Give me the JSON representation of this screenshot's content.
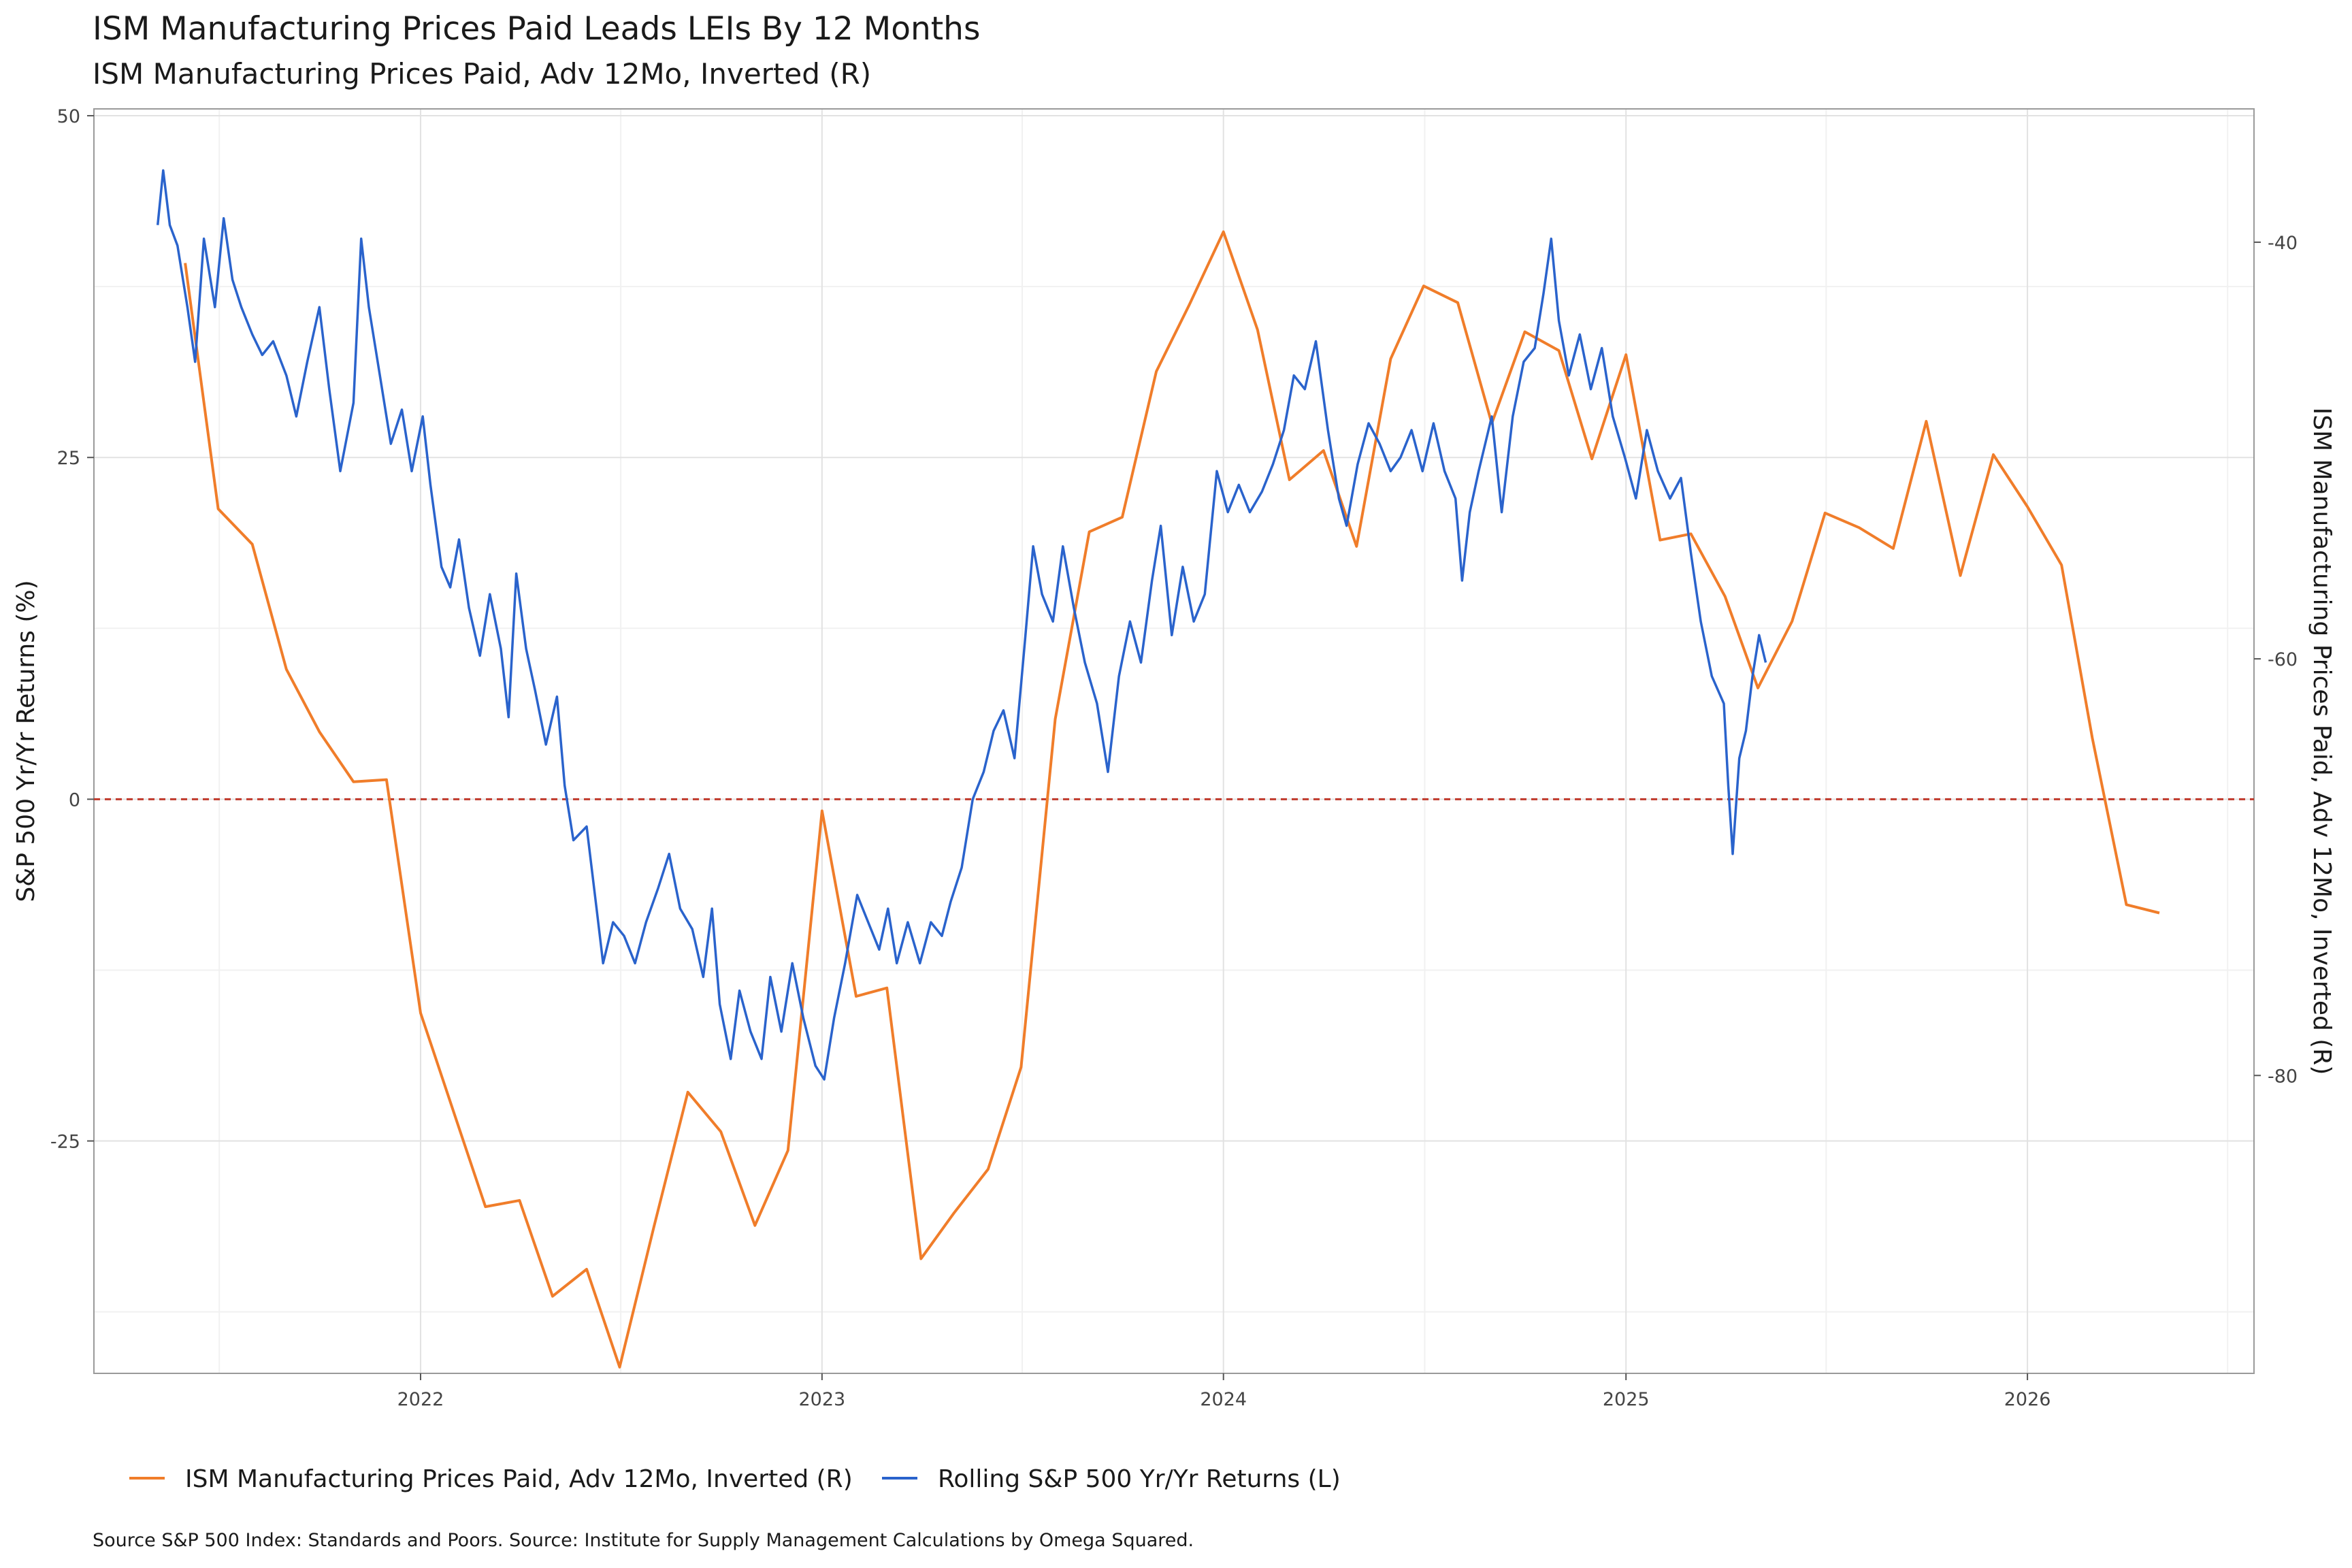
{
  "chart_data": {
    "type": "line",
    "title": "ISM Manufacturing Prices Paid  Leads LEIs By  12  Months",
    "subtitle": "ISM Manufacturing Prices Paid, Adv 12Mo, Inverted (R)",
    "ylabel_left": "S&P 500 Yr/Yr Returns (%)",
    "ylabel_right": "ISM Manufacturing Prices Paid, Adv 12Mo, Inverted (R)",
    "ylim_left": [
      -42,
      50.5
    ],
    "ylim_right": [
      -94.3,
      -33.6
    ],
    "xlim": [
      "2021-03-10",
      "2026-07-26"
    ],
    "x_ticks": [
      "2022",
      "2023",
      "2024",
      "2025",
      "2026"
    ],
    "y_ticks_left": [
      "50",
      "25",
      "0",
      "-25"
    ],
    "y_ticks_right": [
      "-40",
      "-60",
      "-80"
    ],
    "reference_line_left": 0,
    "grid": true,
    "legend_position": "bottom-left",
    "colors": {
      "ism": "#f07d2a",
      "sp500": "#2a63cc",
      "zero_line": "#c0392b"
    },
    "series": [
      {
        "name": "ISM Manufacturing Prices Paid, Adv 12Mo, Inverted (R)",
        "axis": "right",
        "color": "#f07d2a",
        "points": [
          [
            "2021-06-01",
            -41.0
          ],
          [
            "2021-07-01",
            -52.8
          ],
          [
            "2021-08-01",
            -54.5
          ],
          [
            "2021-09-01",
            -60.5
          ],
          [
            "2021-10-01",
            -63.5
          ],
          [
            "2021-11-01",
            -65.9
          ],
          [
            "2021-12-01",
            -65.8
          ],
          [
            "2022-01-01",
            -77.0
          ],
          [
            "2022-02-01",
            -81.9
          ],
          [
            "2022-03-01",
            -86.3
          ],
          [
            "2022-04-01",
            -86.0
          ],
          [
            "2022-05-01",
            -90.6
          ],
          [
            "2022-06-01",
            -89.3
          ],
          [
            "2022-07-01",
            -94.0
          ],
          [
            "2022-08-01",
            -87.3
          ],
          [
            "2022-09-01",
            -80.8
          ],
          [
            "2022-10-01",
            -82.7
          ],
          [
            "2022-11-01",
            -87.2
          ],
          [
            "2022-12-01",
            -83.6
          ],
          [
            "2023-01-01",
            -67.3
          ],
          [
            "2023-02-01",
            -76.2
          ],
          [
            "2023-03-01",
            -75.8
          ],
          [
            "2023-04-01",
            -88.8
          ],
          [
            "2023-05-01",
            -86.6
          ],
          [
            "2023-06-01",
            -84.5
          ],
          [
            "2023-07-01",
            -79.6
          ],
          [
            "2023-08-01",
            -62.9
          ],
          [
            "2023-09-01",
            -53.9
          ],
          [
            "2023-10-01",
            -53.2
          ],
          [
            "2023-11-01",
            -46.2
          ],
          [
            "2023-12-01",
            -43.0
          ],
          [
            "2024-01-01",
            -39.5
          ],
          [
            "2024-02-01",
            -44.2
          ],
          [
            "2024-03-01",
            -51.4
          ],
          [
            "2024-04-01",
            -50.0
          ],
          [
            "2024-05-01",
            -54.6
          ],
          [
            "2024-06-01",
            -45.6
          ],
          [
            "2024-07-01",
            -42.1
          ],
          [
            "2024-08-01",
            -42.9
          ],
          [
            "2024-09-01",
            -48.7
          ],
          [
            "2024-10-01",
            -44.3
          ],
          [
            "2024-11-01",
            -45.2
          ],
          [
            "2024-12-01",
            -50.4
          ],
          [
            "2025-01-01",
            -45.4
          ],
          [
            "2025-02-01",
            -54.3
          ],
          [
            "2025-03-01",
            -54.0
          ],
          [
            "2025-04-01",
            -57.0
          ],
          [
            "2025-05-01",
            -61.4
          ],
          [
            "2025-06-01",
            -58.2
          ],
          [
            "2025-07-01",
            -53.0
          ],
          [
            "2025-08-01",
            -53.7
          ],
          [
            "2025-09-01",
            -54.7
          ],
          [
            "2025-10-01",
            -48.6
          ],
          [
            "2025-11-01",
            -56.0
          ],
          [
            "2025-12-01",
            -50.2
          ],
          [
            "2026-01-01",
            -52.7
          ],
          [
            "2026-02-01",
            -55.5
          ],
          [
            "2026-03-01",
            -63.8
          ],
          [
            "2026-04-01",
            -71.8
          ],
          [
            "2026-05-01",
            -72.2
          ]
        ]
      },
      {
        "name": "Rolling S&P 500 Yr/Yr Returns (L)",
        "axis": "left",
        "color": "#2a63cc",
        "points": [
          [
            "2021-05-07",
            42.0
          ],
          [
            "2021-05-12",
            46.0
          ],
          [
            "2021-05-18",
            42.0
          ],
          [
            "2021-05-25",
            40.5
          ],
          [
            "2021-06-03",
            36.0
          ],
          [
            "2021-06-10",
            32.0
          ],
          [
            "2021-06-18",
            41.0
          ],
          [
            "2021-06-28",
            36.0
          ],
          [
            "2021-07-06",
            42.5
          ],
          [
            "2021-07-14",
            38.0
          ],
          [
            "2021-07-22",
            36.0
          ],
          [
            "2021-08-01",
            34.0
          ],
          [
            "2021-08-10",
            32.5
          ],
          [
            "2021-08-20",
            33.5
          ],
          [
            "2021-09-01",
            31.0
          ],
          [
            "2021-09-10",
            28.0
          ],
          [
            "2021-09-20",
            32.0
          ],
          [
            "2021-10-01",
            36.0
          ],
          [
            "2021-10-10",
            30.0
          ],
          [
            "2021-10-20",
            24.0
          ],
          [
            "2021-11-01",
            29.0
          ],
          [
            "2021-11-08",
            41.0
          ],
          [
            "2021-11-15",
            36.0
          ],
          [
            "2021-11-25",
            31.0
          ],
          [
            "2021-12-05",
            26.0
          ],
          [
            "2021-12-15",
            28.5
          ],
          [
            "2021-12-24",
            24.0
          ],
          [
            "2022-01-03",
            28.0
          ],
          [
            "2022-01-10",
            23.0
          ],
          [
            "2022-01-20",
            17.0
          ],
          [
            "2022-01-28",
            15.5
          ],
          [
            "2022-02-05",
            19.0
          ],
          [
            "2022-02-14",
            14.0
          ],
          [
            "2022-02-24",
            10.5
          ],
          [
            "2022-03-05",
            15.0
          ],
          [
            "2022-03-15",
            11.0
          ],
          [
            "2022-03-22",
            6.0
          ],
          [
            "2022-03-29",
            16.5
          ],
          [
            "2022-04-07",
            11.0
          ],
          [
            "2022-04-15",
            8.0
          ],
          [
            "2022-04-25",
            4.0
          ],
          [
            "2022-05-05",
            7.5
          ],
          [
            "2022-05-12",
            1.0
          ],
          [
            "2022-05-20",
            -3.0
          ],
          [
            "2022-06-01",
            -2.0
          ],
          [
            "2022-06-10",
            -8.0
          ],
          [
            "2022-06-16",
            -12.0
          ],
          [
            "2022-06-25",
            -9.0
          ],
          [
            "2022-07-05",
            -10.0
          ],
          [
            "2022-07-15",
            -12.0
          ],
          [
            "2022-07-25",
            -9.0
          ],
          [
            "2022-08-05",
            -6.5
          ],
          [
            "2022-08-15",
            -4.0
          ],
          [
            "2022-08-25",
            -8.0
          ],
          [
            "2022-09-05",
            -9.5
          ],
          [
            "2022-09-15",
            -13.0
          ],
          [
            "2022-09-23",
            -8.0
          ],
          [
            "2022-09-30",
            -15.0
          ],
          [
            "2022-10-10",
            -19.0
          ],
          [
            "2022-10-18",
            -14.0
          ],
          [
            "2022-10-28",
            -17.0
          ],
          [
            "2022-11-07",
            -19.0
          ],
          [
            "2022-11-15",
            -13.0
          ],
          [
            "2022-11-25",
            -17.0
          ],
          [
            "2022-12-05",
            -12.0
          ],
          [
            "2022-12-15",
            -16.0
          ],
          [
            "2022-12-26",
            -19.5
          ],
          [
            "2023-01-03",
            -20.5
          ],
          [
            "2023-01-12",
            -16.0
          ],
          [
            "2023-01-22",
            -12.0
          ],
          [
            "2023-02-02",
            -7.0
          ],
          [
            "2023-02-12",
            -9.0
          ],
          [
            "2023-02-22",
            -11.0
          ],
          [
            "2023-03-02",
            -8.0
          ],
          [
            "2023-03-10",
            -12.0
          ],
          [
            "2023-03-20",
            -9.0
          ],
          [
            "2023-03-31",
            -12.0
          ],
          [
            "2023-04-10",
            -9.0
          ],
          [
            "2023-04-20",
            -10.0
          ],
          [
            "2023-04-28",
            -7.5
          ],
          [
            "2023-05-08",
            -5.0
          ],
          [
            "2023-05-18",
            0.0
          ],
          [
            "2023-05-28",
            2.0
          ],
          [
            "2023-06-06",
            5.0
          ],
          [
            "2023-06-15",
            6.5
          ],
          [
            "2023-06-25",
            3.0
          ],
          [
            "2023-07-05",
            12.0
          ],
          [
            "2023-07-12",
            18.5
          ],
          [
            "2023-07-20",
            15.0
          ],
          [
            "2023-07-30",
            13.0
          ],
          [
            "2023-08-08",
            18.5
          ],
          [
            "2023-08-18",
            14.0
          ],
          [
            "2023-08-28",
            10.0
          ],
          [
            "2023-09-08",
            7.0
          ],
          [
            "2023-09-18",
            2.0
          ],
          [
            "2023-09-28",
            9.0
          ],
          [
            "2023-10-08",
            13.0
          ],
          [
            "2023-10-18",
            10.0
          ],
          [
            "2023-10-28",
            16.0
          ],
          [
            "2023-11-05",
            20.0
          ],
          [
            "2023-11-15",
            12.0
          ],
          [
            "2023-11-25",
            17.0
          ],
          [
            "2023-12-05",
            13.0
          ],
          [
            "2023-12-15",
            15.0
          ],
          [
            "2023-12-26",
            24.0
          ],
          [
            "2024-01-05",
            21.0
          ],
          [
            "2024-01-15",
            23.0
          ],
          [
            "2024-01-25",
            21.0
          ],
          [
            "2024-02-05",
            22.5
          ],
          [
            "2024-02-15",
            24.5
          ],
          [
            "2024-02-25",
            27.0
          ],
          [
            "2024-03-05",
            31.0
          ],
          [
            "2024-03-15",
            30.0
          ],
          [
            "2024-03-25",
            33.5
          ],
          [
            "2024-04-05",
            27.0
          ],
          [
            "2024-04-15",
            22.0
          ],
          [
            "2024-04-22",
            20.0
          ],
          [
            "2024-05-02",
            24.5
          ],
          [
            "2024-05-12",
            27.5
          ],
          [
            "2024-05-22",
            26.0
          ],
          [
            "2024-06-01",
            24.0
          ],
          [
            "2024-06-10",
            25.0
          ],
          [
            "2024-06-20",
            27.0
          ],
          [
            "2024-06-30",
            24.0
          ],
          [
            "2024-07-10",
            27.5
          ],
          [
            "2024-07-20",
            24.0
          ],
          [
            "2024-07-30",
            22.0
          ],
          [
            "2024-08-05",
            16.0
          ],
          [
            "2024-08-12",
            21.0
          ],
          [
            "2024-08-20",
            24.0
          ],
          [
            "2024-09-01",
            28.0
          ],
          [
            "2024-09-10",
            21.0
          ],
          [
            "2024-09-20",
            28.0
          ],
          [
            "2024-09-30",
            32.0
          ],
          [
            "2024-10-10",
            33.0
          ],
          [
            "2024-10-18",
            37.0
          ],
          [
            "2024-10-25",
            41.0
          ],
          [
            "2024-11-01",
            35.0
          ],
          [
            "2024-11-10",
            31.0
          ],
          [
            "2024-11-20",
            34.0
          ],
          [
            "2024-11-30",
            30.0
          ],
          [
            "2024-12-10",
            33.0
          ],
          [
            "2024-12-20",
            28.0
          ],
          [
            "2024-12-31",
            25.0
          ],
          [
            "2025-01-10",
            22.0
          ],
          [
            "2025-01-20",
            27.0
          ],
          [
            "2025-01-30",
            24.0
          ],
          [
            "2025-02-10",
            22.0
          ],
          [
            "2025-02-20",
            23.5
          ],
          [
            "2025-03-01",
            18.0
          ],
          [
            "2025-03-10",
            13.0
          ],
          [
            "2025-03-20",
            9.0
          ],
          [
            "2025-03-31",
            7.0
          ],
          [
            "2025-04-04",
            1.0
          ],
          [
            "2025-04-08",
            -4.0
          ],
          [
            "2025-04-14",
            3.0
          ],
          [
            "2025-04-20",
            5.0
          ],
          [
            "2025-04-26",
            9.0
          ],
          [
            "2025-05-02",
            12.0
          ],
          [
            "2025-05-08",
            10.0
          ]
        ]
      }
    ],
    "legend": [
      {
        "label": "ISM Manufacturing Prices Paid, Adv 12Mo, Inverted (R)",
        "color": "#f07d2a"
      },
      {
        "label": "Rolling S&P 500 Yr/Yr Returns (L)",
        "color": "#2a63cc"
      }
    ],
    "caption": "Source S&P 500 Index: Standards and Poors. Source: Institute for Supply Management  Calculations by Omega Squared."
  }
}
